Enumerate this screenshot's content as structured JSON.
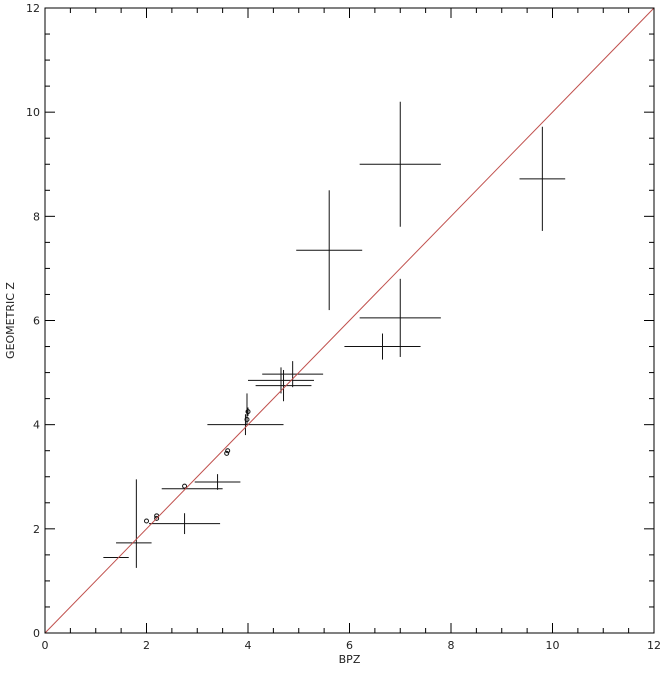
{
  "chart_data": {
    "type": "scatter",
    "title": "",
    "xlabel": "BPZ",
    "ylabel": "GEOMETRIC Z",
    "xlim": [
      0,
      12
    ],
    "ylim": [
      0,
      12
    ],
    "xticks": [
      "0",
      "2",
      "4",
      "6",
      "8",
      "10",
      "12"
    ],
    "yticks": [
      "0",
      "2",
      "4",
      "6",
      "8",
      "10",
      "12"
    ],
    "grid": false,
    "colors": {
      "points": "#111111",
      "reference_line": "#c0504d",
      "axes": "#000000"
    },
    "reference_line": {
      "x": [
        0,
        12
      ],
      "y": [
        0,
        12
      ],
      "label": ""
    },
    "points": [
      {
        "x": 1.4,
        "y": 1.45,
        "xerr": 0.25,
        "yerr": 0.0
      },
      {
        "x": 1.75,
        "y": 1.73,
        "xerr": 0.35,
        "yerr": 0.0
      },
      {
        "x": 1.8,
        "y": 2.1,
        "xerr": 0.0,
        "yerr": 0.85
      },
      {
        "x": 2.75,
        "y": 2.1,
        "xerr": 0.7,
        "yerr": 0.2
      },
      {
        "x": 2.0,
        "y": 2.15,
        "xerr": 0.02,
        "yerr": 0.02
      },
      {
        "x": 2.2,
        "y": 2.2,
        "xerr": 0.02,
        "yerr": 0.03
      },
      {
        "x": 2.2,
        "y": 2.25,
        "xerr": 0.02,
        "yerr": 0.02
      },
      {
        "x": 2.75,
        "y": 2.82,
        "xerr": 0.02,
        "yerr": 0.02
      },
      {
        "x": 2.9,
        "y": 2.77,
        "xerr": 0.6,
        "yerr": 0.05
      },
      {
        "x": 3.4,
        "y": 2.9,
        "xerr": 0.45,
        "yerr": 0.15
      },
      {
        "x": 3.58,
        "y": 3.45,
        "xerr": 0.02,
        "yerr": 0.05
      },
      {
        "x": 3.6,
        "y": 3.5,
        "xerr": 0.02,
        "yerr": 0.05
      },
      {
        "x": 3.95,
        "y": 4.0,
        "xerr": 0.75,
        "yerr": 0.2
      },
      {
        "x": 3.98,
        "y": 4.1,
        "xerr": 0.02,
        "yerr": 0.1
      },
      {
        "x": 4.0,
        "y": 4.25,
        "xerr": 0.02,
        "yerr": 0.08
      },
      {
        "x": 3.98,
        "y": 4.3,
        "xerr": 0.02,
        "yerr": 0.3
      },
      {
        "x": 4.7,
        "y": 4.75,
        "xerr": 0.55,
        "yerr": 0.3
      },
      {
        "x": 4.65,
        "y": 4.85,
        "xerr": 0.65,
        "yerr": 0.25
      },
      {
        "x": 4.88,
        "y": 4.97,
        "xerr": 0.6,
        "yerr": 0.25
      },
      {
        "x": 5.6,
        "y": 7.35,
        "xerr": 0.65,
        "yerr": 1.15
      },
      {
        "x": 6.65,
        "y": 5.5,
        "xerr": 0.75,
        "yerr": 0.25
      },
      {
        "x": 7.0,
        "y": 6.05,
        "xerr": 0.8,
        "yerr": 0.75
      },
      {
        "x": 7.0,
        "y": 9.0,
        "xerr": 0.8,
        "yerr": 1.2
      },
      {
        "x": 9.8,
        "y": 8.72,
        "xerr": 0.45,
        "yerr": 1.0
      }
    ]
  }
}
